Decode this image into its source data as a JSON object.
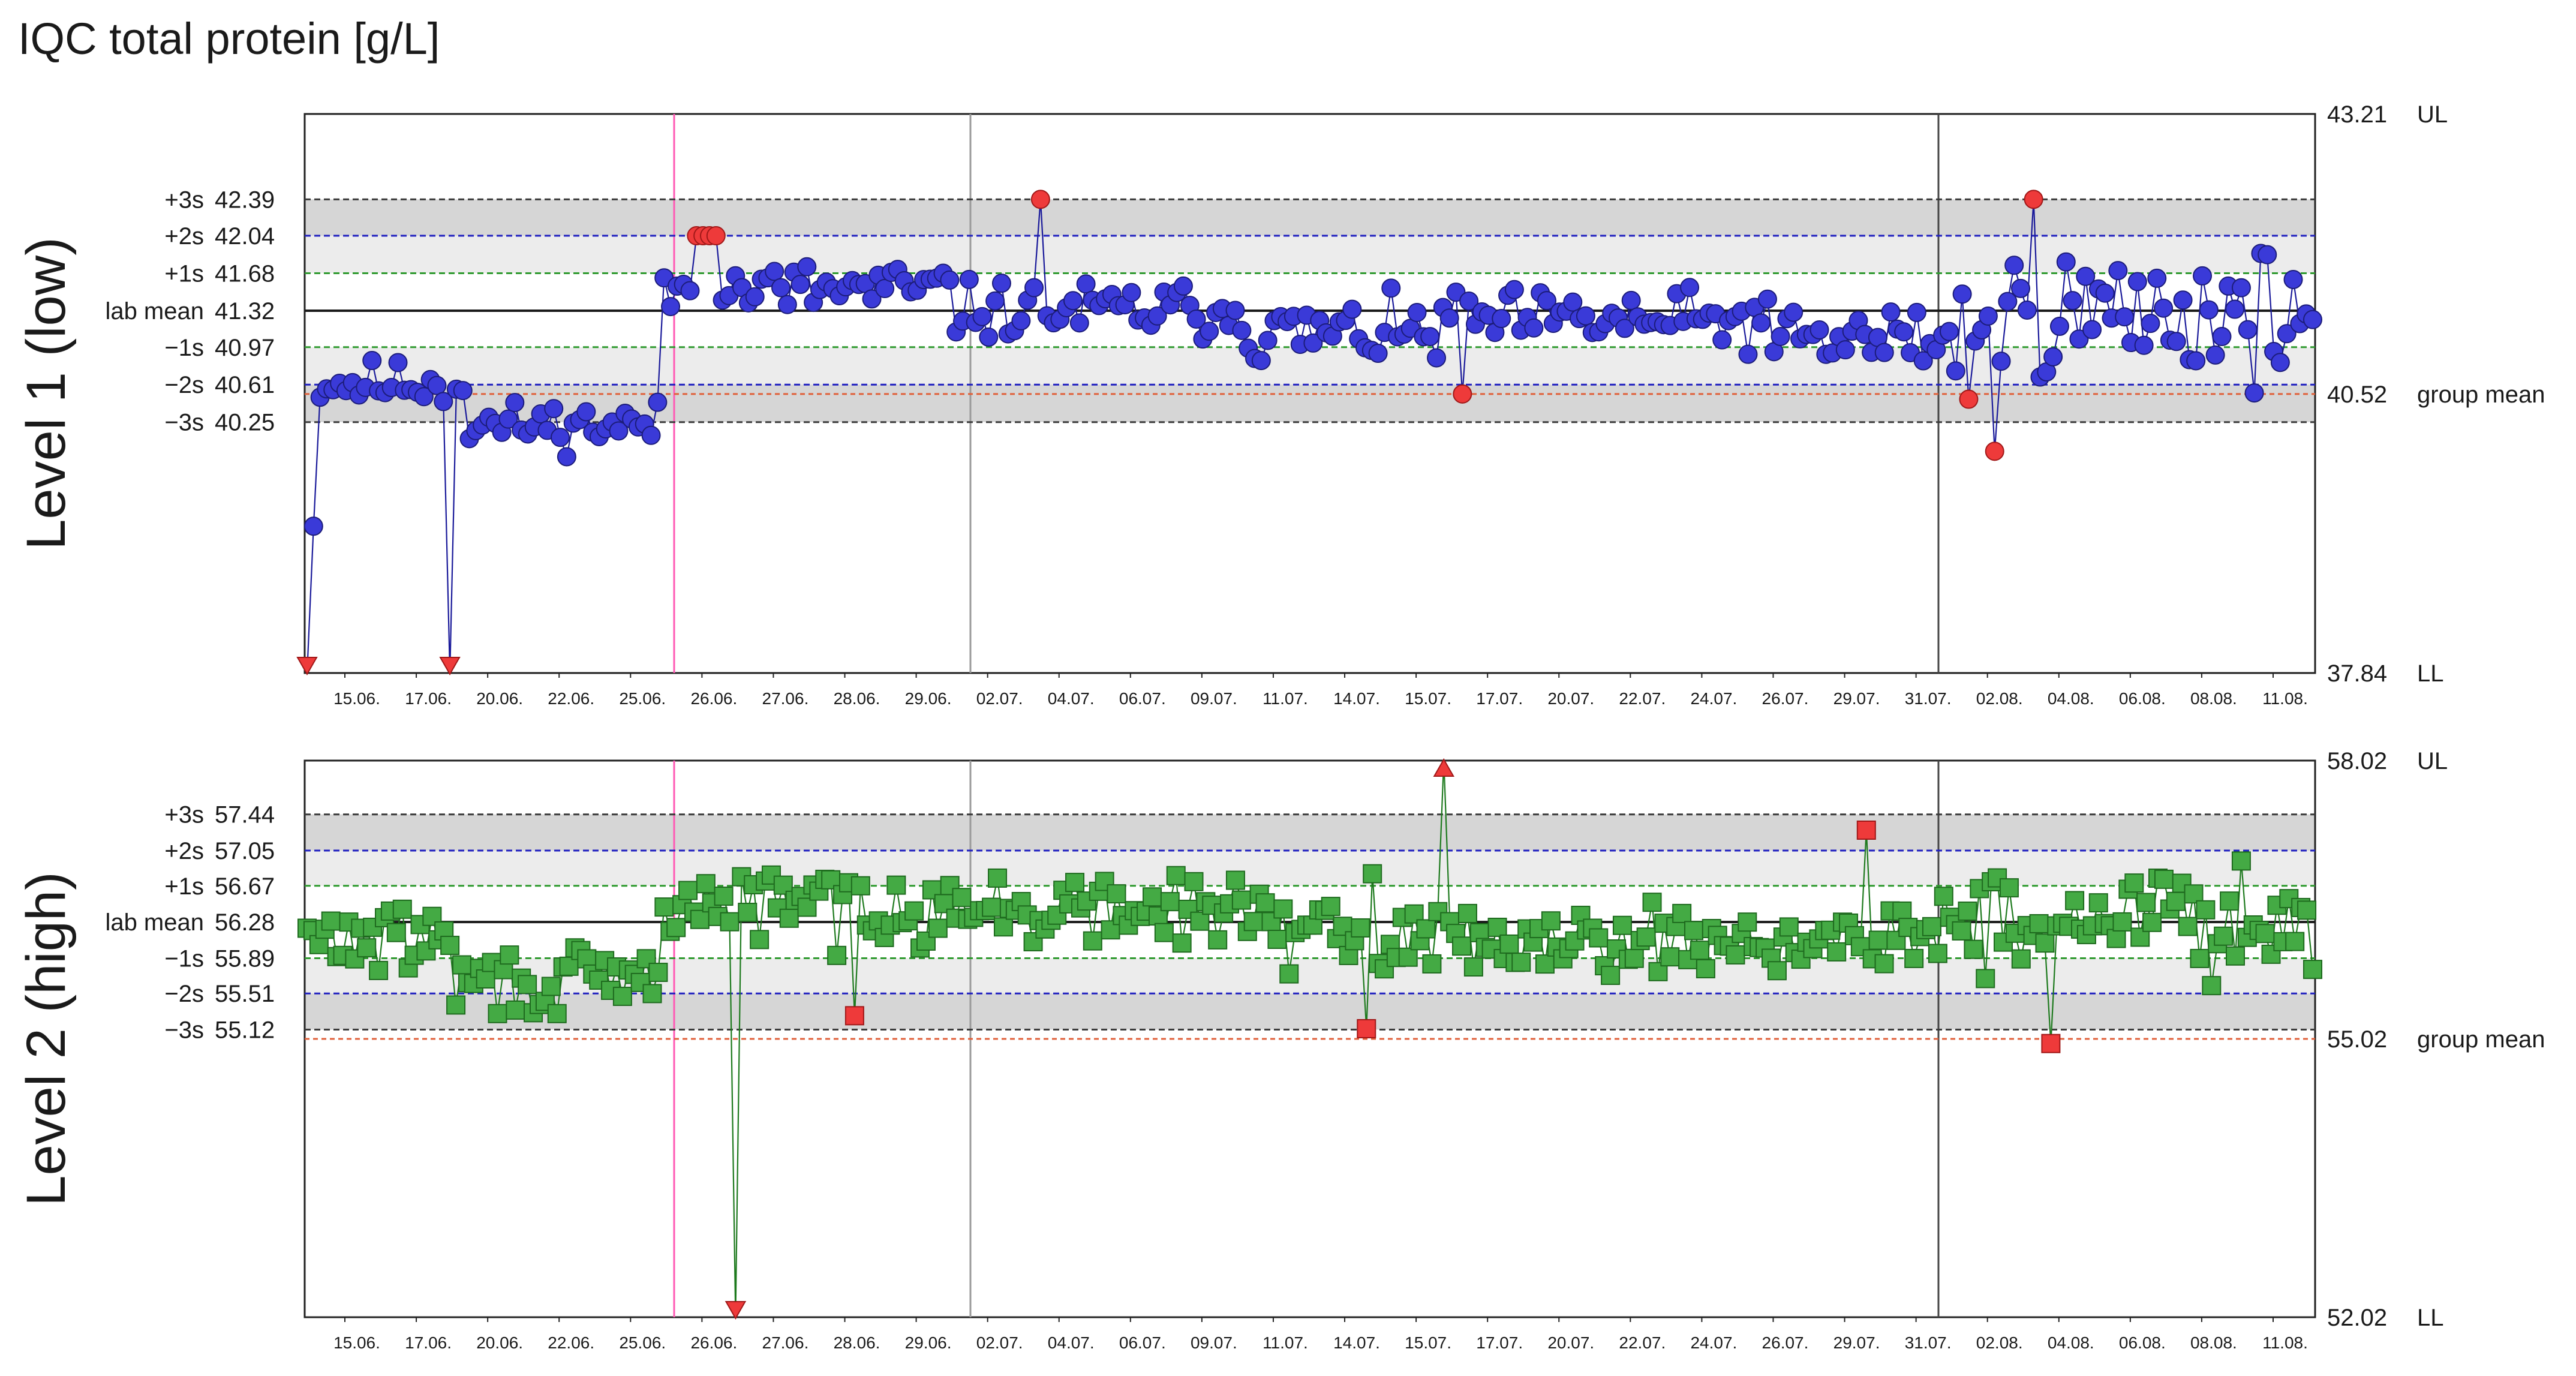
{
  "chart_data": [
    {
      "type": "scatter",
      "title": "IQC total protein [g/L]",
      "ylabel": "Level 1 (low)",
      "ylim": [
        37.84,
        43.21
      ],
      "upper_limit": {
        "value": 43.21,
        "label": "43.21",
        "tag": "UL"
      },
      "lower_limit": {
        "value": 37.84,
        "label": "37.84",
        "tag": "LL"
      },
      "group_mean": {
        "value": 40.52,
        "label": "40.52",
        "tag": "group mean"
      },
      "levels": [
        {
          "name": "+3s",
          "value": 42.39,
          "label": "42.39",
          "color": "#3a3a3a"
        },
        {
          "name": "+2s",
          "value": 42.04,
          "label": "42.04",
          "color": "#2020c0"
        },
        {
          "name": "+1s",
          "value": 41.68,
          "label": "41.68",
          "color": "#2f9a2f"
        },
        {
          "name": "lab mean",
          "value": 41.32,
          "label": "41.32",
          "color": "#1a1a1a"
        },
        {
          "name": "−1s",
          "value": 40.97,
          "label": "40.97",
          "color": "#2f9a2f"
        },
        {
          "name": "−2s",
          "value": 40.61,
          "label": "40.61",
          "color": "#2020c0"
        },
        {
          "name": "−3s",
          "value": 40.25,
          "label": "40.25",
          "color": "#3a3a3a"
        }
      ],
      "ticks": [
        "15.06.",
        "17.06.",
        "20.06.",
        "22.06.",
        "25.06.",
        "26.06.",
        "27.06.",
        "28.06.",
        "29.06.",
        "02.07.",
        "04.07.",
        "06.07.",
        "09.07.",
        "11.07.",
        "14.07.",
        "15.07.",
        "17.07.",
        "20.07.",
        "22.07.",
        "24.07.",
        "26.07.",
        "29.07.",
        "31.07.",
        "02.08.",
        "04.08.",
        "06.08.",
        "08.08.",
        "11.08."
      ],
      "marker": "circle",
      "series_color": "#3a3ad8",
      "line_color": "#1a1a9a",
      "flag_color": "#ee3a3a",
      "seed": 11,
      "segments": [
        {
          "n": 25,
          "mean": 40.62,
          "sd": 0.13
        },
        {
          "n": 30,
          "mean": 40.22,
          "sd": 0.13
        },
        {
          "n": 45,
          "mean": 41.52,
          "sd": 0.16
        },
        {
          "n": 45,
          "mean": 41.32,
          "sd": 0.16
        },
        {
          "n": 30,
          "mean": 41.1,
          "sd": 0.18
        },
        {
          "n": 50,
          "mean": 41.22,
          "sd": 0.17
        },
        {
          "n": 30,
          "mean": 41.04,
          "sd": 0.22
        },
        {
          "n": 55,
          "mean": 41.3,
          "sd": 0.35
        }
      ],
      "flags": [
        {
          "i": 0,
          "y": 37.84,
          "shape": "tri-down"
        },
        {
          "i": 22,
          "y": 37.84,
          "shape": "tri-down"
        },
        {
          "i": 60,
          "y": 42.04,
          "shape": "circle"
        },
        {
          "i": 61,
          "y": 42.04,
          "shape": "circle"
        },
        {
          "i": 62,
          "y": 42.04,
          "shape": "circle"
        },
        {
          "i": 63,
          "y": 42.04,
          "shape": "circle"
        },
        {
          "i": 113,
          "y": 42.39,
          "shape": "circle"
        },
        {
          "i": 178,
          "y": 40.52,
          "shape": "circle"
        },
        {
          "i": 256,
          "y": 40.47,
          "shape": "circle"
        },
        {
          "i": 260,
          "y": 39.97,
          "shape": "circle"
        },
        {
          "i": 266,
          "y": 42.39,
          "shape": "circle"
        },
        {
          "i": 325,
          "y": 40.23,
          "shape": "circle"
        }
      ],
      "spikes": [
        {
          "i": 1,
          "y": 39.25
        },
        {
          "i": 22,
          "y": 37.84
        },
        {
          "i": 178,
          "y": 42.39
        },
        {
          "i": 260,
          "y": 41.95
        }
      ]
    },
    {
      "type": "scatter",
      "ylabel": "Level 2 (high)",
      "ylim": [
        52.02,
        58.02
      ],
      "upper_limit": {
        "value": 58.02,
        "label": "58.02",
        "tag": "UL"
      },
      "lower_limit": {
        "value": 52.02,
        "label": "52.02",
        "tag": "LL"
      },
      "group_mean": {
        "value": 55.02,
        "label": "55.02",
        "tag": "group mean"
      },
      "levels": [
        {
          "name": "+3s",
          "value": 57.44,
          "label": "57.44",
          "color": "#3a3a3a"
        },
        {
          "name": "+2s",
          "value": 57.05,
          "label": "57.05",
          "color": "#2020c0"
        },
        {
          "name": "+1s",
          "value": 56.67,
          "label": "56.67",
          "color": "#2f9a2f"
        },
        {
          "name": "lab mean",
          "value": 56.28,
          "label": "56.28",
          "color": "#1a1a1a"
        },
        {
          "name": "−1s",
          "value": 55.89,
          "label": "55.89",
          "color": "#2f9a2f"
        },
        {
          "name": "−2s",
          "value": 55.51,
          "label": "55.51",
          "color": "#2020c0"
        },
        {
          "name": "−3s",
          "value": 55.12,
          "label": "55.12",
          "color": "#3a3a3a"
        }
      ],
      "ticks": [
        "15.06.",
        "17.06.",
        "20.06.",
        "22.06.",
        "25.06.",
        "26.06.",
        "27.06.",
        "28.06.",
        "29.06.",
        "02.07.",
        "04.07.",
        "06.07.",
        "09.07.",
        "11.07.",
        "14.07.",
        "15.07.",
        "17.07.",
        "20.07.",
        "22.07.",
        "24.07.",
        "26.07.",
        "29.07.",
        "31.07.",
        "02.08.",
        "04.08.",
        "06.08.",
        "08.08.",
        "11.08."
      ],
      "marker": "square",
      "series_color": "#44aa44",
      "line_color": "#1e7a1e",
      "flag_color": "#ee3a3a",
      "seed": 29,
      "segments": [
        {
          "n": 25,
          "mean": 56.1,
          "sd": 0.2
        },
        {
          "n": 35,
          "mean": 55.62,
          "sd": 0.22
        },
        {
          "n": 50,
          "mean": 56.48,
          "sd": 0.25
        },
        {
          "n": 55,
          "mean": 56.4,
          "sd": 0.2
        },
        {
          "n": 60,
          "mean": 56.12,
          "sd": 0.2
        },
        {
          "n": 50,
          "mean": 56.08,
          "sd": 0.2
        },
        {
          "n": 63,
          "mean": 56.35,
          "sd": 0.35
        }
      ],
      "flags": [
        {
          "i": 72,
          "y": 52.02,
          "shape": "tri-down"
        },
        {
          "i": 92,
          "y": 55.27,
          "shape": "square"
        },
        {
          "i": 178,
          "y": 55.13,
          "shape": "square"
        },
        {
          "i": 191,
          "y": 58.02,
          "shape": "tri-up"
        },
        {
          "i": 262,
          "y": 57.27,
          "shape": "square"
        },
        {
          "i": 293,
          "y": 54.97,
          "shape": "square"
        }
      ],
      "spikes": [
        {
          "i": 72,
          "y": 52.02
        },
        {
          "i": 191,
          "y": 58.02
        },
        {
          "i": 179,
          "y": 56.8
        }
      ]
    }
  ]
}
